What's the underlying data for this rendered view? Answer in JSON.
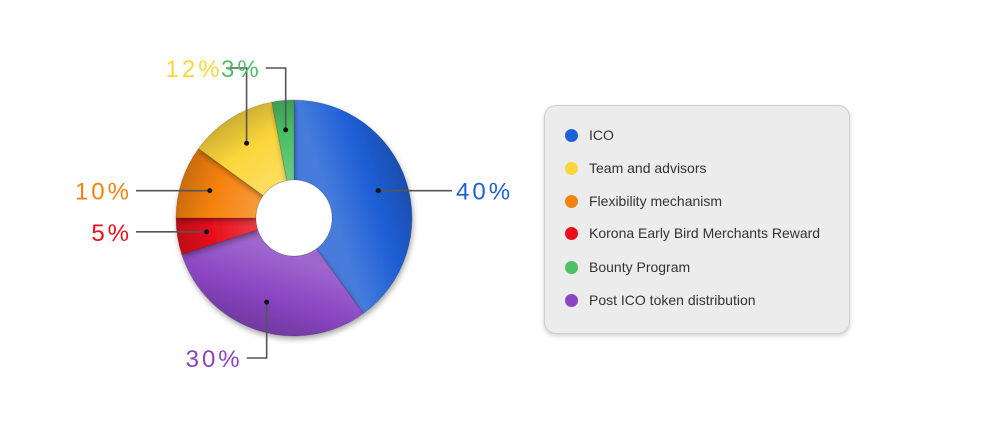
{
  "chart_data": {
    "type": "pie",
    "donut": true,
    "slices": [
      {
        "label": "ICO",
        "value": 40,
        "display": "40%",
        "color": "#1f5fd6"
      },
      {
        "label": "Post ICO token distribution",
        "value": 30,
        "display": "30%",
        "color": "#8a45c2"
      },
      {
        "label": "Korona Early Bird Merchants Reward",
        "value": 5,
        "display": "5%",
        "color": "#e8101c"
      },
      {
        "label": "Flexibility mechanism",
        "value": 10,
        "display": "10%",
        "color": "#f5820d"
      },
      {
        "label": "Team and advisors",
        "value": 12,
        "display": "12%",
        "color": "#fbd63c"
      },
      {
        "label": "Bounty Program",
        "value": 3,
        "display": "3%",
        "color": "#4cc066"
      }
    ],
    "legend": {
      "placement": "right",
      "items": [
        {
          "label": "ICO",
          "color": "#1f5fd6"
        },
        {
          "label": "Team and advisors",
          "color": "#fbd63c"
        },
        {
          "label": "Flexibility mechanism",
          "color": "#f5820d"
        },
        {
          "label": "Korona Early Bird Merchants Reward",
          "color": "#e8101c"
        },
        {
          "label": "Bounty Program",
          "color": "#4cc066"
        },
        {
          "label": "Post ICO token distribution",
          "color": "#8a45c2"
        }
      ]
    }
  }
}
